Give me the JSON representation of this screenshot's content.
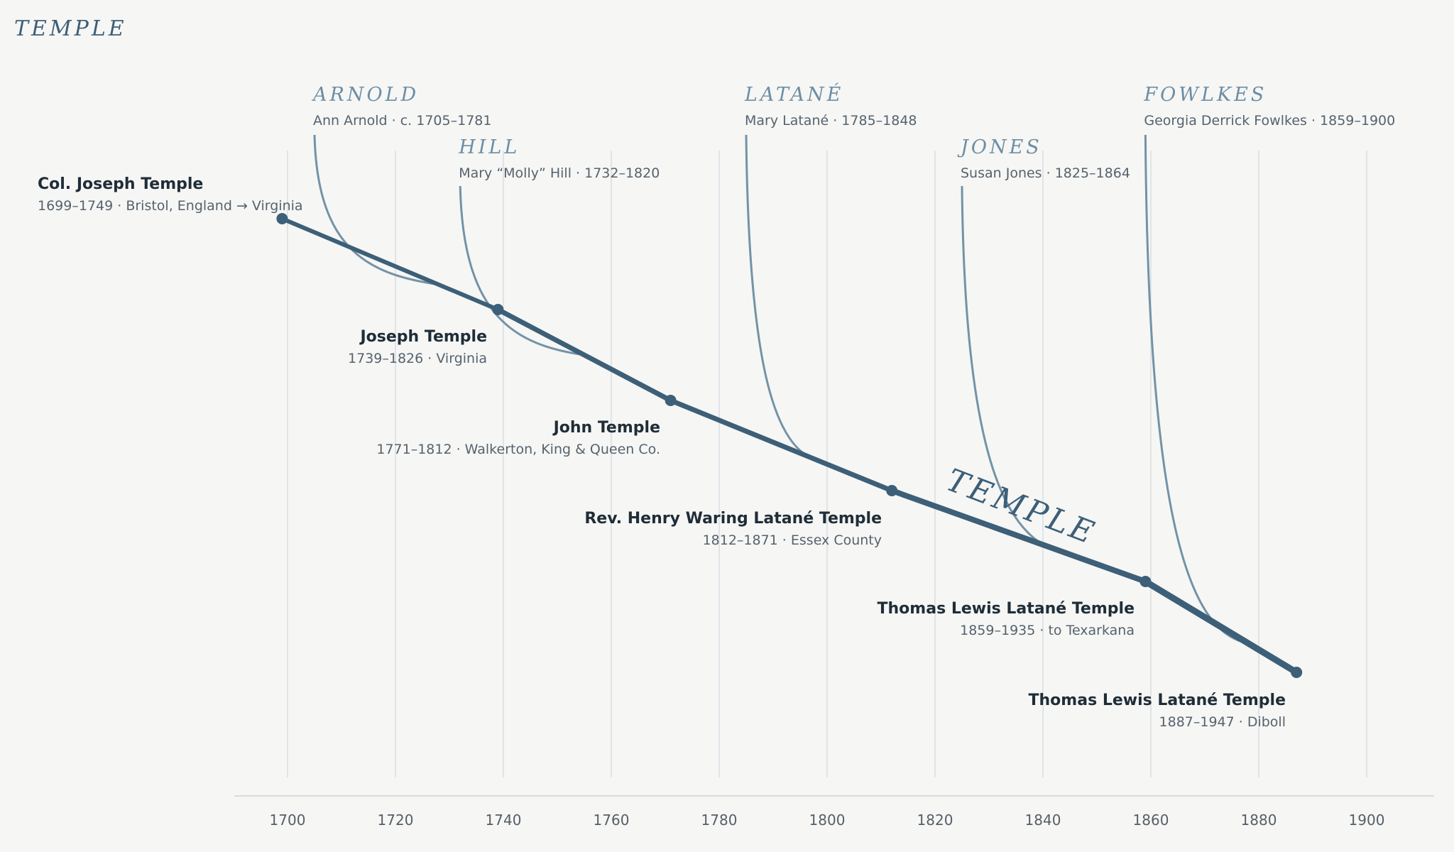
{
  "title": "TEMPLE",
  "main_line_label": "TEMPLE",
  "colors": {
    "background": "#f6f6f5",
    "main_line": "#3d5f77",
    "branch_line": "#7393a6",
    "branch_title": "#6d8ea3",
    "text_dark": "#1f2d38",
    "text_sub": "#55636d",
    "grid": "#e0e4e6",
    "axis": "#d8dcde"
  },
  "axis": {
    "ticks": [
      "1700",
      "1720",
      "1740",
      "1760",
      "1780",
      "1800",
      "1820",
      "1840",
      "1860",
      "1880",
      "1900"
    ]
  },
  "generations": [
    {
      "year": 1699,
      "name": "Col. Joseph Temple",
      "detail": "1699–1749 · Bristol, England → Virginia"
    },
    {
      "year": 1739,
      "name": "Joseph Temple",
      "detail": "1739–1826 · Virginia"
    },
    {
      "year": 1771,
      "name": "John Temple",
      "detail": "1771–1812 · Walkerton, King & Queen Co."
    },
    {
      "year": 1812,
      "name": "Rev. Henry Waring Latané Temple",
      "detail": "1812–1871 · Essex County"
    },
    {
      "year": 1859,
      "name": "Thomas Lewis Latané Temple",
      "detail": "1859–1935 · to Texarkana"
    },
    {
      "year": 1887,
      "name": "Thomas Lewis Latané Temple",
      "detail": "1887–1947 · Diboll"
    }
  ],
  "branches": [
    {
      "family": "ARNOLD",
      "person": "Ann Arnold · c. 1705–1781",
      "start_year": 1705,
      "join_year": 1728
    },
    {
      "family": "HILL",
      "person": "Mary “Molly” Hill · 1732–1820",
      "start_year": 1732,
      "join_year": 1755
    },
    {
      "family": "LATANÉ",
      "person": "Mary Latané · 1785–1848",
      "start_year": 1785,
      "join_year": 1799
    },
    {
      "family": "JONES",
      "person": "Susan Jones · 1825–1864",
      "start_year": 1825,
      "join_year": 1845
    },
    {
      "family": "FOWLKES",
      "person": "Georgia Derrick Fowlkes · 1859–1900",
      "start_year": 1859,
      "join_year": 1878
    }
  ]
}
